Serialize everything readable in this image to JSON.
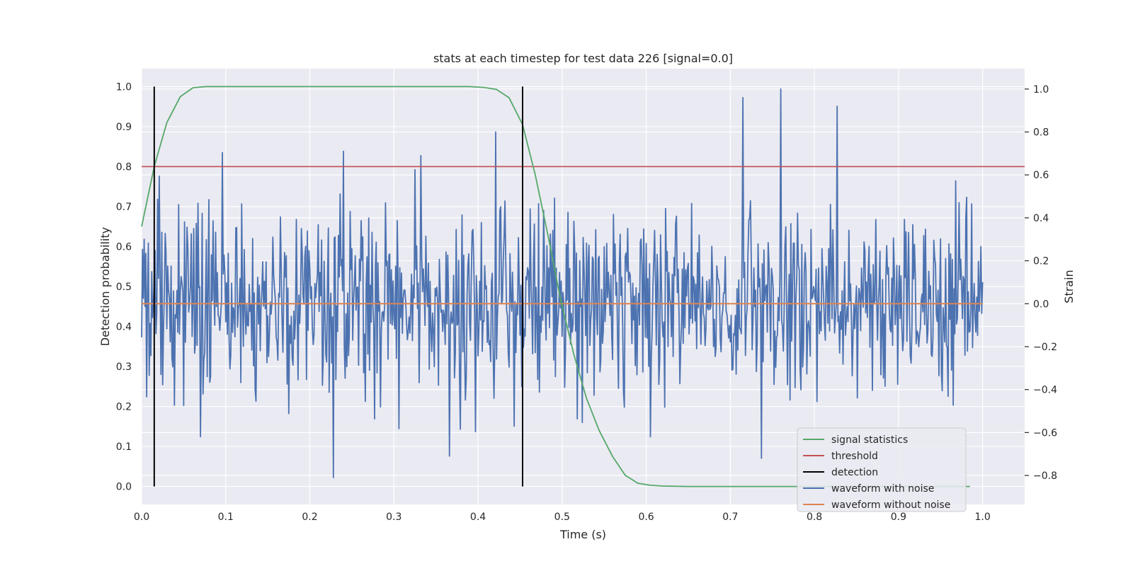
{
  "chart_data": {
    "type": "line",
    "title": "stats at each timestep for test data 226 [signal=0.0]",
    "xlabel": "Time (s)",
    "ylabel_left": "Detection probability",
    "ylabel_right": "Strain",
    "xlim": [
      0.0,
      1.05
    ],
    "ylim_left": [
      -0.045,
      1.045
    ],
    "ylim_right": [
      -0.935,
      1.095
    ],
    "x_ticks": [
      0.0,
      0.1,
      0.2,
      0.3,
      0.4,
      0.5,
      0.6,
      0.7,
      0.8,
      0.9,
      1.0
    ],
    "x_tick_labels": [
      "0.0",
      "0.1",
      "0.2",
      "0.3",
      "0.4",
      "0.5",
      "0.6",
      "0.7",
      "0.8",
      "0.9",
      "1.0"
    ],
    "y_left_ticks": [
      0.0,
      0.1,
      0.2,
      0.3,
      0.4,
      0.5,
      0.6,
      0.7,
      0.8,
      0.9,
      1.0
    ],
    "y_left_tick_labels": [
      "0.0",
      "0.1",
      "0.2",
      "0.3",
      "0.4",
      "0.5",
      "0.6",
      "0.7",
      "0.8",
      "0.9",
      "1.0"
    ],
    "y_right_ticks": [
      -0.8,
      -0.6,
      -0.4,
      -0.2,
      0.0,
      0.2,
      0.4,
      0.6,
      0.8,
      1.0
    ],
    "y_right_tick_labels": [
      "−0.8",
      "−0.6",
      "−0.4",
      "−0.2",
      "0.0",
      "0.2",
      "0.4",
      "0.6",
      "0.8",
      "1.0"
    ],
    "grid": true,
    "legend_position": "lower-right",
    "colors": {
      "signal_statistics": "#55a868",
      "threshold": "#c44e52",
      "detection": "#000000",
      "waveform_with_noise": "#4c72b0",
      "waveform_without_noise": "#dd8452",
      "plot_background": "#eaeaf2",
      "grid": "#ffffff"
    },
    "series": [
      {
        "name": "signal statistics",
        "axis": "left",
        "x": [
          0.0,
          0.015,
          0.03,
          0.046,
          0.061,
          0.076,
          0.1,
          0.2,
          0.3,
          0.39,
          0.407,
          0.422,
          0.437,
          0.453,
          0.468,
          0.483,
          0.498,
          0.514,
          0.529,
          0.544,
          0.56,
          0.575,
          0.59,
          0.605,
          0.62,
          0.65,
          0.7,
          0.8,
          0.9,
          0.985
        ],
        "values": [
          0.65,
          0.8,
          0.91,
          0.975,
          0.997,
          1.0,
          1.0,
          1.0,
          1.0,
          1.0,
          0.998,
          0.993,
          0.972,
          0.905,
          0.78,
          0.63,
          0.47,
          0.33,
          0.22,
          0.14,
          0.075,
          0.028,
          0.008,
          0.003,
          0.001,
          0.0,
          0.0,
          0.0,
          0.0,
          0.0
        ]
      },
      {
        "name": "threshold",
        "axis": "left",
        "x": [
          0.0,
          1.05
        ],
        "values": [
          0.8,
          0.8
        ]
      },
      {
        "name": "detection",
        "axis": "left",
        "segments": [
          {
            "x": 0.015,
            "y": [
              0.0,
              1.0
            ]
          },
          {
            "x": 0.453,
            "y": [
              0.0,
              1.0
            ]
          }
        ]
      },
      {
        "name": "waveform with noise",
        "axis": "right",
        "x_start": 0.0,
        "x_end": 1.0,
        "peak_points": [
          {
            "x": 0.76,
            "y": 1.0
          },
          {
            "x": 0.228,
            "y": -0.81
          },
          {
            "x": 0.737,
            "y": -0.72
          },
          {
            "x": 0.366,
            "y": -0.71
          },
          {
            "x": 0.421,
            "y": 0.8
          },
          {
            "x": 0.827,
            "y": 0.92
          },
          {
            "x": 0.715,
            "y": 0.96
          },
          {
            "x": 0.24,
            "y": 0.71
          },
          {
            "x": 0.332,
            "y": 0.69
          }
        ]
      },
      {
        "name": "waveform without noise",
        "axis": "right",
        "x": [
          0.0,
          1.0
        ],
        "values": [
          0.0,
          0.0
        ]
      }
    ],
    "legend": [
      {
        "label": "signal statistics",
        "color": "#55a868"
      },
      {
        "label": "threshold",
        "color": "#c44e52"
      },
      {
        "label": "detection",
        "color": "#000000"
      },
      {
        "label": "waveform with noise",
        "color": "#4c72b0"
      },
      {
        "label": "waveform without noise",
        "color": "#dd8452"
      }
    ]
  }
}
